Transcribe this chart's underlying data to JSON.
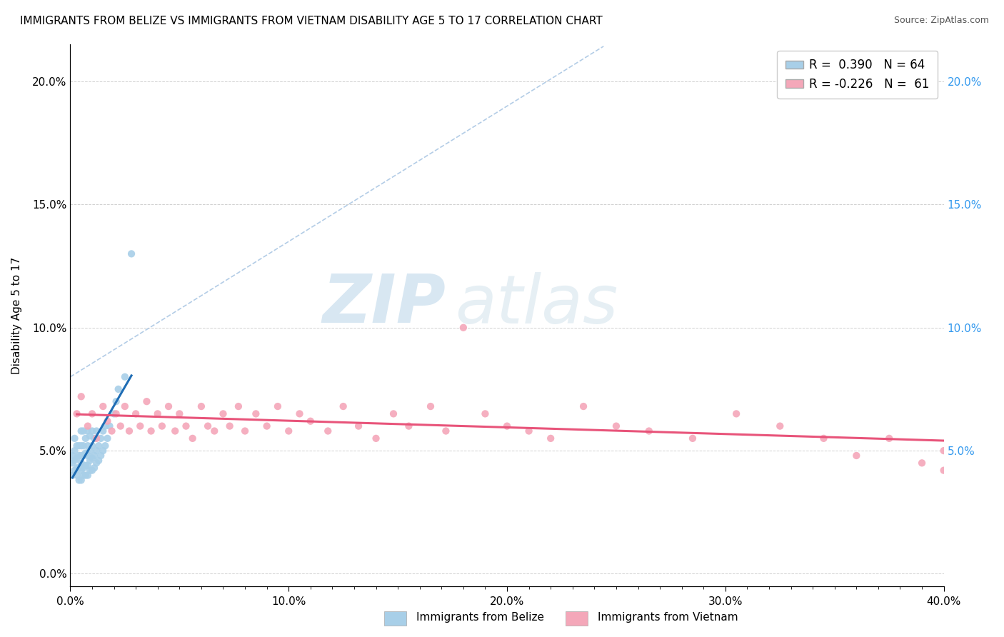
{
  "title": "IMMIGRANTS FROM BELIZE VS IMMIGRANTS FROM VIETNAM DISABILITY AGE 5 TO 17 CORRELATION CHART",
  "source": "Source: ZipAtlas.com",
  "ylabel": "Disability Age 5 to 17",
  "x_tick_vals": [
    0.0,
    0.1,
    0.2,
    0.3,
    0.4
  ],
  "y_tick_vals": [
    0.0,
    0.05,
    0.1,
    0.15,
    0.2
  ],
  "xlim": [
    0.0,
    0.4
  ],
  "ylim": [
    -0.005,
    0.215
  ],
  "belize_color": "#a8cfe8",
  "vietnam_color": "#f4a7b9",
  "belize_line_color": "#1f6db5",
  "vietnam_line_color": "#e8547a",
  "legend_belize_R": "0.390",
  "legend_belize_N": "64",
  "legend_vietnam_R": "-0.226",
  "legend_vietnam_N": "61",
  "belize_x": [
    0.001,
    0.001,
    0.001,
    0.002,
    0.002,
    0.002,
    0.002,
    0.003,
    0.003,
    0.003,
    0.003,
    0.004,
    0.004,
    0.004,
    0.004,
    0.005,
    0.005,
    0.005,
    0.005,
    0.005,
    0.005,
    0.006,
    0.006,
    0.006,
    0.006,
    0.006,
    0.007,
    0.007,
    0.007,
    0.007,
    0.008,
    0.008,
    0.008,
    0.008,
    0.008,
    0.009,
    0.009,
    0.009,
    0.009,
    0.01,
    0.01,
    0.01,
    0.01,
    0.011,
    0.011,
    0.011,
    0.012,
    0.012,
    0.012,
    0.013,
    0.013,
    0.014,
    0.014,
    0.015,
    0.015,
    0.016,
    0.016,
    0.017,
    0.018,
    0.02,
    0.021,
    0.022,
    0.025,
    0.028
  ],
  "belize_y": [
    0.04,
    0.045,
    0.048,
    0.042,
    0.046,
    0.05,
    0.055,
    0.04,
    0.043,
    0.047,
    0.052,
    0.038,
    0.043,
    0.048,
    0.052,
    0.038,
    0.042,
    0.045,
    0.048,
    0.052,
    0.058,
    0.04,
    0.043,
    0.048,
    0.052,
    0.058,
    0.04,
    0.044,
    0.049,
    0.055,
    0.04,
    0.044,
    0.048,
    0.052,
    0.058,
    0.042,
    0.046,
    0.05,
    0.056,
    0.042,
    0.047,
    0.052,
    0.058,
    0.043,
    0.048,
    0.055,
    0.045,
    0.05,
    0.058,
    0.046,
    0.052,
    0.048,
    0.055,
    0.05,
    0.058,
    0.052,
    0.06,
    0.055,
    0.06,
    0.065,
    0.07,
    0.075,
    0.08,
    0.13
  ],
  "vietnam_x": [
    0.003,
    0.005,
    0.008,
    0.01,
    0.012,
    0.015,
    0.017,
    0.019,
    0.021,
    0.023,
    0.025,
    0.027,
    0.03,
    0.032,
    0.035,
    0.037,
    0.04,
    0.042,
    0.045,
    0.048,
    0.05,
    0.053,
    0.056,
    0.06,
    0.063,
    0.066,
    0.07,
    0.073,
    0.077,
    0.08,
    0.085,
    0.09,
    0.095,
    0.1,
    0.105,
    0.11,
    0.118,
    0.125,
    0.132,
    0.14,
    0.148,
    0.155,
    0.165,
    0.172,
    0.18,
    0.19,
    0.2,
    0.21,
    0.22,
    0.235,
    0.25,
    0.265,
    0.285,
    0.305,
    0.325,
    0.345,
    0.36,
    0.375,
    0.39,
    0.4,
    0.4
  ],
  "vietnam_y": [
    0.065,
    0.072,
    0.06,
    0.065,
    0.055,
    0.068,
    0.062,
    0.058,
    0.065,
    0.06,
    0.068,
    0.058,
    0.065,
    0.06,
    0.07,
    0.058,
    0.065,
    0.06,
    0.068,
    0.058,
    0.065,
    0.06,
    0.055,
    0.068,
    0.06,
    0.058,
    0.065,
    0.06,
    0.068,
    0.058,
    0.065,
    0.06,
    0.068,
    0.058,
    0.065,
    0.062,
    0.058,
    0.068,
    0.06,
    0.055,
    0.065,
    0.06,
    0.068,
    0.058,
    0.1,
    0.065,
    0.06,
    0.058,
    0.055,
    0.068,
    0.06,
    0.058,
    0.055,
    0.065,
    0.06,
    0.055,
    0.048,
    0.055,
    0.045,
    0.05,
    0.042
  ]
}
